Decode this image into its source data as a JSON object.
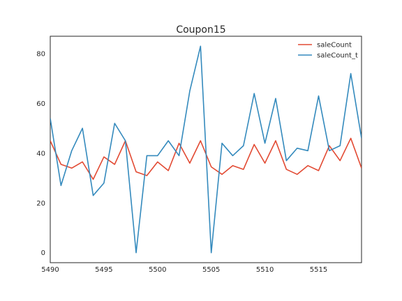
{
  "chart_data": {
    "type": "line",
    "title": "Coupon15",
    "xlabel": "",
    "ylabel": "",
    "xlim": [
      5490,
      5519
    ],
    "ylim": [
      -4,
      87
    ],
    "xticks": [
      5490,
      5495,
      5500,
      5505,
      5510,
      5515
    ],
    "yticks": [
      0,
      20,
      40,
      60,
      80
    ],
    "grid": false,
    "legend": "top-right",
    "x": [
      5490,
      5491,
      5492,
      5493,
      5494,
      5495,
      5496,
      5497,
      5498,
      5499,
      5500,
      5501,
      5502,
      5503,
      5504,
      5505,
      5506,
      5507,
      5508,
      5509,
      5510,
      5511,
      5512,
      5513,
      5514,
      5515,
      5516,
      5517,
      5518,
      5519
    ],
    "series": [
      {
        "name": "saleCount",
        "color": "#E24A33",
        "values": [
          45,
          35.5,
          34,
          36.5,
          29.5,
          38.5,
          35.5,
          45,
          32.5,
          31,
          36.5,
          33,
          44,
          36,
          45,
          34.5,
          31.5,
          35,
          33.5,
          43.5,
          36,
          45,
          33.5,
          31.5,
          35,
          33,
          43,
          37,
          46,
          34
        ]
      },
      {
        "name": "saleCount_t",
        "color": "#348ABD",
        "values": [
          54,
          27,
          41,
          50,
          23,
          28,
          52,
          45,
          0,
          39,
          39,
          45,
          39,
          65,
          83,
          0,
          44,
          39,
          43,
          64,
          44,
          62,
          37,
          42,
          41,
          63,
          41,
          43,
          72,
          46
        ]
      }
    ]
  }
}
